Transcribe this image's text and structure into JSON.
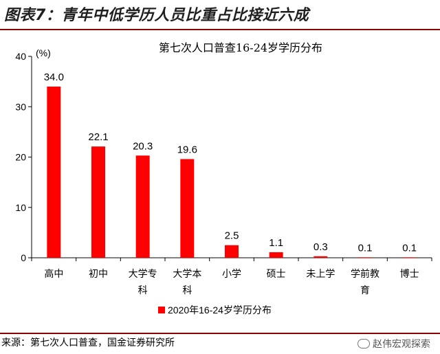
{
  "figure_title": "图表7：青年中低学历人员比重占比接近六成",
  "source_text": "来源：第七次人口普查，国金证券研究所",
  "watermark_text": "赵伟宏观探索",
  "colors": {
    "bar": "#ff0000",
    "rule": "#8b0000"
  },
  "chart_data": {
    "type": "bar",
    "title": "第七次人口普查16-24岁学历分布",
    "unit_label": "(%)",
    "categories": [
      "高中",
      "初中",
      "大学专科",
      "大学本科",
      "小学",
      "硕士",
      "未上学",
      "学前教育",
      "博士"
    ],
    "series": [
      {
        "name": "2020年16-24岁学历分布",
        "values": [
          34.0,
          22.1,
          20.3,
          19.6,
          2.5,
          1.1,
          0.3,
          0.1,
          0.1
        ]
      }
    ],
    "data_labels": [
      "34.0",
      "22.1",
      "20.3",
      "19.6",
      "2.5",
      "1.1",
      "0.3",
      "0.1",
      "0.1"
    ],
    "yticks": [
      0,
      10,
      20,
      30,
      40
    ],
    "ylim": [
      0,
      40
    ],
    "grid": false,
    "legend_position": "bottom"
  }
}
